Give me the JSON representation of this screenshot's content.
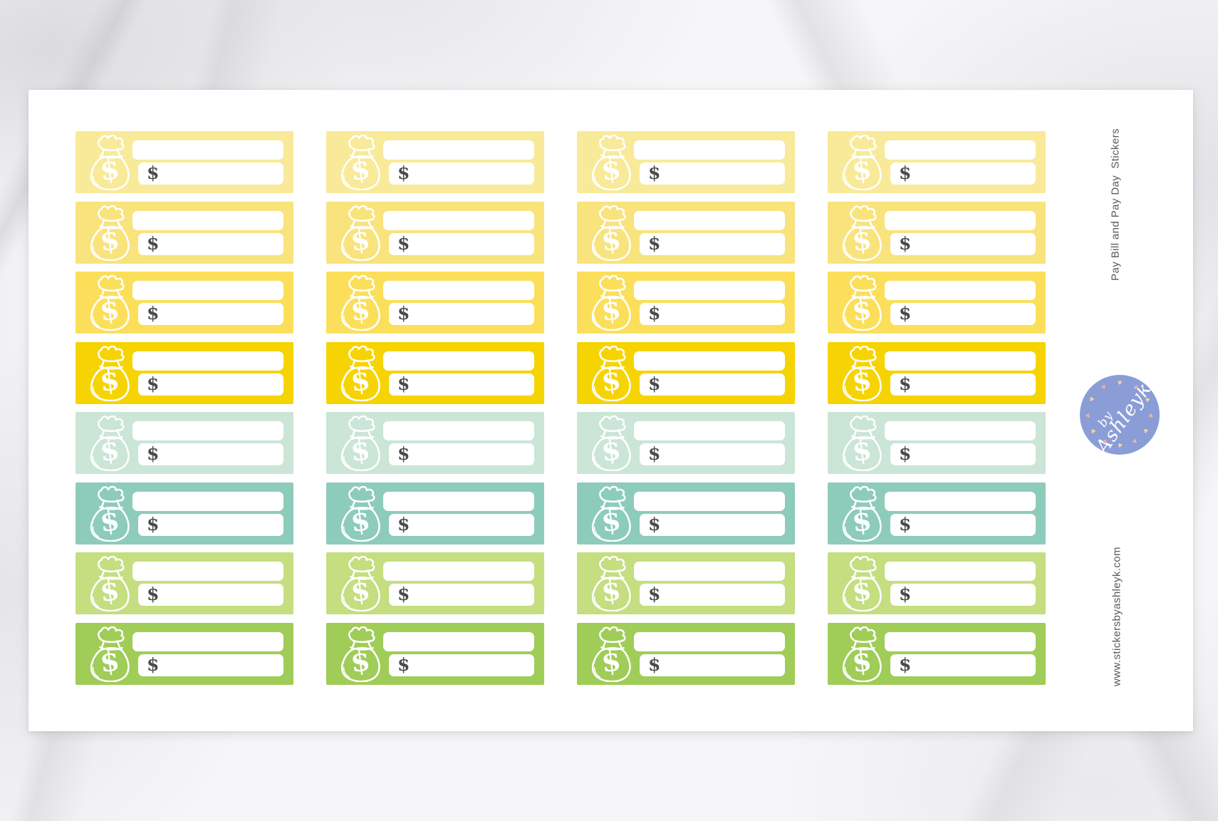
{
  "scene": {
    "marble_base_color": "#F6F6F8",
    "marble_vein_color": "#D8D6D9"
  },
  "sheet": {
    "title_vertical": "Pay Bill and Pay Day  Stickers",
    "website_vertical": "www.stickersbyashleyk.com",
    "side_text_color": "#58585A",
    "paper_color": "#FFFFFF"
  },
  "logo": {
    "word1": "by",
    "word2": "Ashleyk",
    "bg_color": "#8B9DD6",
    "text_color": "#FFFFFF",
    "heart_count": 12,
    "heart_colors": [
      "#F2D98E",
      "#EFAFA9"
    ]
  },
  "sticker_sheet": {
    "columns": 4,
    "row_colors": [
      "#F8EA99",
      "#F8E37D",
      "#FBDF5B",
      "#F6D404",
      "#CBE5D6",
      "#8DCCBA",
      "#C4DE80",
      "#A0CC58"
    ],
    "sticker": {
      "icon": "money-bag-icon",
      "bag_symbol": "$",
      "amount_prefix": "$",
      "amount_symbol_color": "#4A4A4A",
      "field_color": "#FFFFFF",
      "line_color": "#FFFFFF"
    }
  }
}
